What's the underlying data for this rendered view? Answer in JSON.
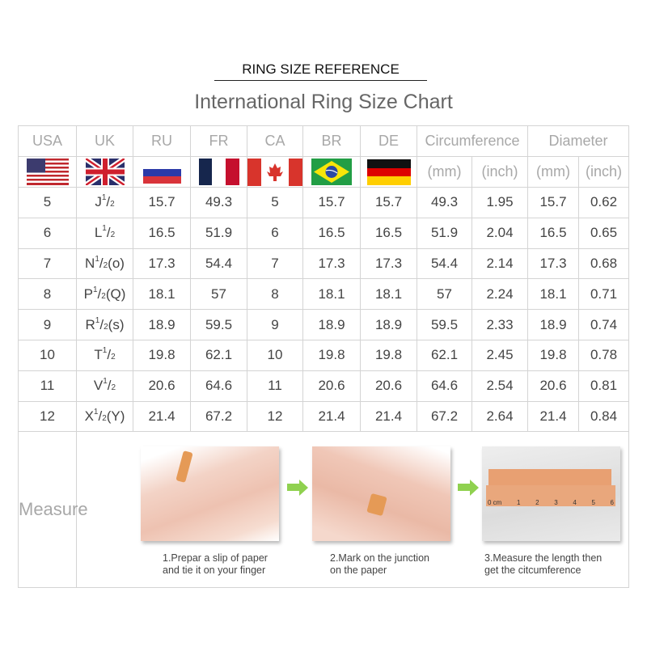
{
  "header": {
    "reference": "RING SIZE REFERENCE",
    "title": "International Ring Size Chart"
  },
  "columns": [
    "USA",
    "UK",
    "RU",
    "FR",
    "CA",
    "BR",
    "DE",
    "Circumference",
    "Diameter"
  ],
  "subcolumns": {
    "mm": "(mm)",
    "inch": "(inch)"
  },
  "flags": [
    "us-flag-icon",
    "uk-flag-icon",
    "russia-flag-icon",
    "france-flag-icon",
    "canada-flag-icon",
    "brazil-flag-icon",
    "germany-flag-icon"
  ],
  "fraction": {
    "num": "1",
    "sep": "/",
    "den": "2"
  },
  "rows": [
    {
      "usa": "5",
      "uk": "J",
      "uk_suffix": "",
      "ru": "15.7",
      "fr": "49.3",
      "ca": "5",
      "br": "15.7",
      "de": "15.7",
      "c_mm": "49.3",
      "c_in": "1.95",
      "d_mm": "15.7",
      "d_in": "0.62"
    },
    {
      "usa": "6",
      "uk": "L",
      "uk_suffix": "",
      "ru": "16.5",
      "fr": "51.9",
      "ca": "6",
      "br": "16.5",
      "de": "16.5",
      "c_mm": "51.9",
      "c_in": "2.04",
      "d_mm": "16.5",
      "d_in": "0.65"
    },
    {
      "usa": "7",
      "uk": "N",
      "uk_suffix": "(o)",
      "ru": "17.3",
      "fr": "54.4",
      "ca": "7",
      "br": "17.3",
      "de": "17.3",
      "c_mm": "54.4",
      "c_in": "2.14",
      "d_mm": "17.3",
      "d_in": "0.68"
    },
    {
      "usa": "8",
      "uk": "P",
      "uk_suffix": "(Q)",
      "ru": "18.1",
      "fr": "57",
      "ca": "8",
      "br": "18.1",
      "de": "18.1",
      "c_mm": "57",
      "c_in": "2.24",
      "d_mm": "18.1",
      "d_in": "0.71"
    },
    {
      "usa": "9",
      "uk": "R",
      "uk_suffix": "(s)",
      "ru": "18.9",
      "fr": "59.5",
      "ca": "9",
      "br": "18.9",
      "de": "18.9",
      "c_mm": "59.5",
      "c_in": "2.33",
      "d_mm": "18.9",
      "d_in": "0.74"
    },
    {
      "usa": "10",
      "uk": "T",
      "uk_suffix": "",
      "ru": "19.8",
      "fr": "62.1",
      "ca": "10",
      "br": "19.8",
      "de": "19.8",
      "c_mm": "62.1",
      "c_in": "2.45",
      "d_mm": "19.8",
      "d_in": "0.78"
    },
    {
      "usa": "11",
      "uk": "V",
      "uk_suffix": "",
      "ru": "20.6",
      "fr": "64.6",
      "ca": "11",
      "br": "20.6",
      "de": "20.6",
      "c_mm": "64.6",
      "c_in": "2.54",
      "d_mm": "20.6",
      "d_in": "0.81"
    },
    {
      "usa": "12",
      "uk": "X",
      "uk_suffix": "(Y)",
      "ru": "21.4",
      "fr": "67.2",
      "ca": "12",
      "br": "21.4",
      "de": "21.4",
      "c_mm": "67.2",
      "c_in": "2.64",
      "d_mm": "21.4",
      "d_in": "0.84"
    }
  ],
  "measure": {
    "label": "Measure",
    "ruler_labels": [
      "0 cm",
      "1",
      "2",
      "3",
      "4",
      "5",
      "6"
    ],
    "steps": [
      {
        "line1": "1.Prepar a slip of paper",
        "line2": "and tie it on your finger"
      },
      {
        "line1": "2.Mark on the junction",
        "line2": "on the paper"
      },
      {
        "line1": "3.Measure the length then",
        "line2": "get the citcumference"
      }
    ]
  },
  "colors": {
    "arrow": "#8fd14f",
    "header_text": "#a8a8a8",
    "cell_text": "#444444",
    "grid": "#d4d4d4"
  }
}
